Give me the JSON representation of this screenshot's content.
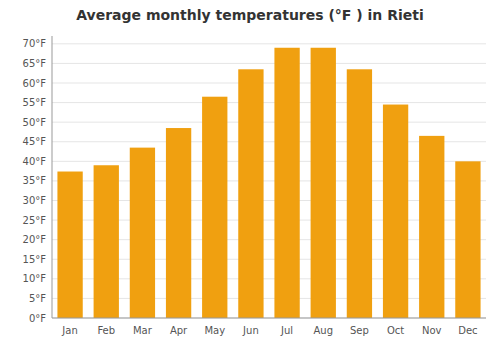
{
  "chart_data": {
    "type": "bar",
    "title": "Average monthly temperatures (°F ) in Rieti",
    "categories": [
      "Jan",
      "Feb",
      "Mar",
      "Apr",
      "May",
      "Jun",
      "Jul",
      "Aug",
      "Sep",
      "Oct",
      "Nov",
      "Dec"
    ],
    "values": [
      37.4,
      39.0,
      43.5,
      48.5,
      56.5,
      63.5,
      69.0,
      69.0,
      63.5,
      54.5,
      46.5,
      40.0
    ],
    "color": "#F0A010",
    "ylim": [
      0,
      72
    ],
    "yticks": [
      {
        "value": 0,
        "label": "0°F"
      },
      {
        "value": 5,
        "label": "5°F"
      },
      {
        "value": 10,
        "label": "10°F"
      },
      {
        "value": 15,
        "label": "15°F"
      },
      {
        "value": 20,
        "label": "20°F"
      },
      {
        "value": 25,
        "label": "25°F"
      },
      {
        "value": 30,
        "label": "30°F"
      },
      {
        "value": 35,
        "label": "35°F"
      },
      {
        "value": 40,
        "label": "40°F"
      },
      {
        "value": 45,
        "label": "45°F"
      },
      {
        "value": 50,
        "label": "50°F"
      },
      {
        "value": 55,
        "label": "55°F"
      },
      {
        "value": 60,
        "label": "60°F"
      },
      {
        "value": 65,
        "label": "65°F"
      },
      {
        "value": 70,
        "label": "70°F"
      }
    ],
    "grid": true
  }
}
